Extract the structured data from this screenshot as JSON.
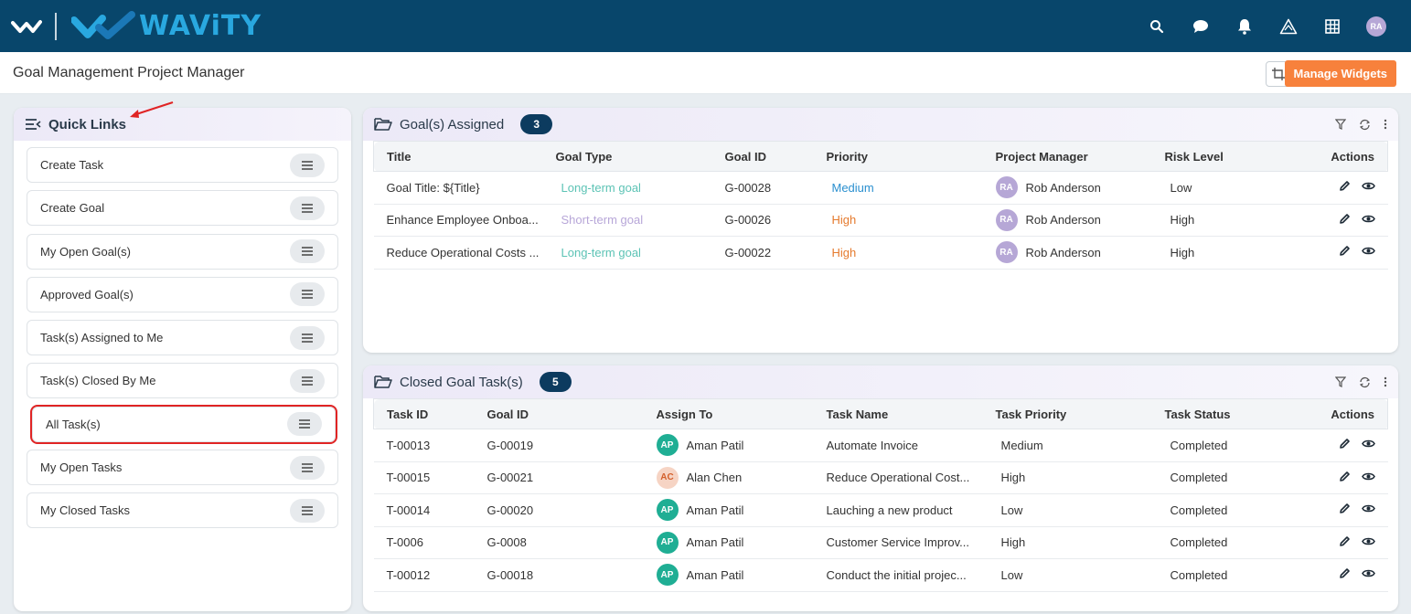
{
  "app": {
    "brand": "WAViTY",
    "avatar": "RA"
  },
  "header": {
    "page_title": "Goal Management Project Manager",
    "manage_widgets": "Manage Widgets"
  },
  "quick_links": {
    "title": "Quick Links",
    "items": [
      {
        "label": "Create Task"
      },
      {
        "label": "Create Goal"
      },
      {
        "label": "My Open Goal(s)"
      },
      {
        "label": "Approved Goal(s)"
      },
      {
        "label": "Task(s) Assigned to Me"
      },
      {
        "label": "Task(s) Closed By Me"
      },
      {
        "label": "All Task(s)"
      },
      {
        "label": "My Open Tasks"
      },
      {
        "label": "My Closed Tasks"
      }
    ]
  },
  "goals_assigned": {
    "title": "Goal(s) Assigned",
    "count": "3",
    "columns": [
      "Title",
      "Goal Type",
      "Goal ID",
      "Priority",
      "Project Manager",
      "Risk Level",
      "Actions"
    ],
    "rows": [
      {
        "title": "Goal Title: ${Title}",
        "goal_type": "Long-term goal",
        "goal_id": "G-00028",
        "priority": "Medium",
        "manager_initials": "RA",
        "manager": "Rob Anderson",
        "risk": "Low"
      },
      {
        "title": "Enhance Employee Onboa...",
        "goal_type": "Short-term goal",
        "goal_id": "G-00026",
        "priority": "High",
        "manager_initials": "RA",
        "manager": "Rob Anderson",
        "risk": "High"
      },
      {
        "title": "Reduce Operational Costs ...",
        "goal_type": "Long-term goal",
        "goal_id": "G-00022",
        "priority": "High",
        "manager_initials": "RA",
        "manager": "Rob Anderson",
        "risk": "High"
      }
    ]
  },
  "closed_tasks": {
    "title": "Closed Goal Task(s)",
    "count": "5",
    "columns": [
      "Task ID",
      "Goal ID",
      "Assign To",
      "Task Name",
      "Task Priority",
      "Task Status",
      "Actions"
    ],
    "rows": [
      {
        "task_id": "T-00013",
        "goal_id": "G-00019",
        "initials": "AP",
        "assignee": "Aman Patil",
        "task_name": "Automate Invoice",
        "priority": "Medium",
        "status": "Completed"
      },
      {
        "task_id": "T-00015",
        "goal_id": "G-00021",
        "initials": "AC",
        "assignee": "Alan Chen",
        "task_name": "Reduce Operational Cost...",
        "priority": "High",
        "status": "Completed"
      },
      {
        "task_id": "T-00014",
        "goal_id": "G-00020",
        "initials": "AP",
        "assignee": "Aman Patil",
        "task_name": "Lauching a new product",
        "priority": "Low",
        "status": "Completed"
      },
      {
        "task_id": "T-0006",
        "goal_id": "G-0008",
        "initials": "AP",
        "assignee": "Aman Patil",
        "task_name": "Customer Service Improv...",
        "priority": "High",
        "status": "Completed"
      },
      {
        "task_id": "T-00012",
        "goal_id": "G-00018",
        "initials": "AP",
        "assignee": "Aman Patil",
        "task_name": "Conduct the initial projec...",
        "priority": "Low",
        "status": "Completed"
      }
    ]
  },
  "colors": {
    "topbar": "#08466b",
    "brand": "#29a8e0",
    "accent": "#f7813c",
    "badge": "#0c3b5f",
    "annotation": "#e02424"
  }
}
